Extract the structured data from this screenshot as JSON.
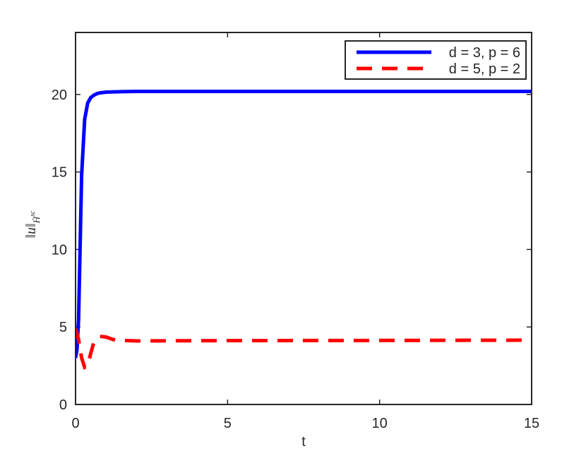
{
  "chart_data": {
    "type": "line",
    "xlabel": "t",
    "ylabel": {
      "base": "‖u‖",
      "sub": "Ḣ",
      "sup": "sc"
    },
    "xlim": [
      0,
      15
    ],
    "xticks": [
      0,
      5,
      10,
      15
    ],
    "ylim": [
      0,
      24
    ],
    "yticks": [
      0,
      5,
      10,
      15,
      20
    ],
    "legend": "upper right",
    "series": [
      {
        "name": "d = 3, p = 6",
        "color": "#0000ff",
        "style": "solid",
        "x": [
          0,
          0.05,
          0.1,
          0.2,
          0.3,
          0.4,
          0.5,
          0.6,
          0.7,
          0.8,
          1,
          1.5,
          2,
          5,
          10,
          15
        ],
        "values": [
          3.0,
          3.6,
          5.5,
          14.8,
          18.4,
          19.45,
          19.8,
          19.95,
          20.05,
          20.1,
          20.15,
          20.18,
          20.2,
          20.2,
          20.2,
          20.2
        ]
      },
      {
        "name": "d = 5, p = 2",
        "color": "#ff0000",
        "style": "dashed",
        "x": [
          0,
          0.1,
          0.2,
          0.3,
          0.4,
          0.5,
          0.6,
          0.8,
          1,
          1.3,
          2,
          5,
          10,
          15
        ],
        "values": [
          4.9,
          4.2,
          3.0,
          2.4,
          2.5,
          3.3,
          4.0,
          4.4,
          4.35,
          4.15,
          4.1,
          4.12,
          4.13,
          4.15
        ]
      }
    ]
  }
}
